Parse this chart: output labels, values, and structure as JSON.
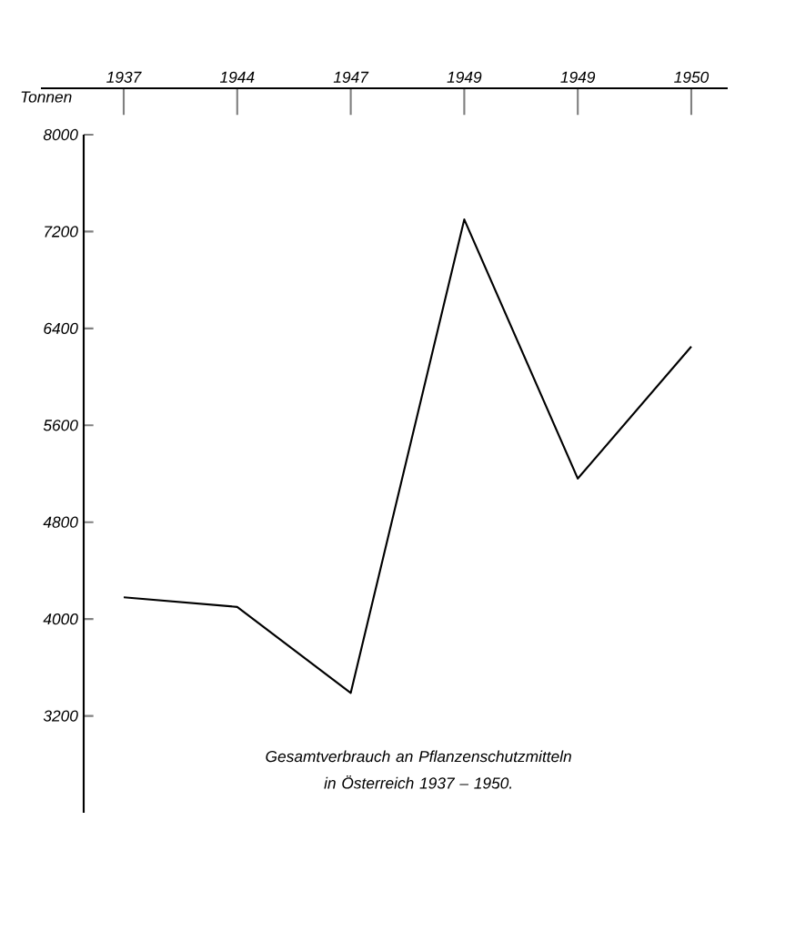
{
  "chart_data": {
    "type": "line",
    "ylabel": "Tonnen",
    "categories": [
      "1937",
      "1944",
      "1947",
      "1949",
      "1949",
      "1950"
    ],
    "values": [
      4180,
      4100,
      3390,
      7300,
      5160,
      6250
    ],
    "color": "#000000",
    "ylim": [
      2400,
      8000
    ],
    "yticks": [
      3200,
      4000,
      4800,
      5600,
      6400,
      7200,
      8000
    ],
    "marker": "none",
    "line_style": "solid",
    "annotations": [
      "Gesamtverbrauch an Pflanzenschutzmitteln in Österreich 1937 – 1950."
    ]
  }
}
